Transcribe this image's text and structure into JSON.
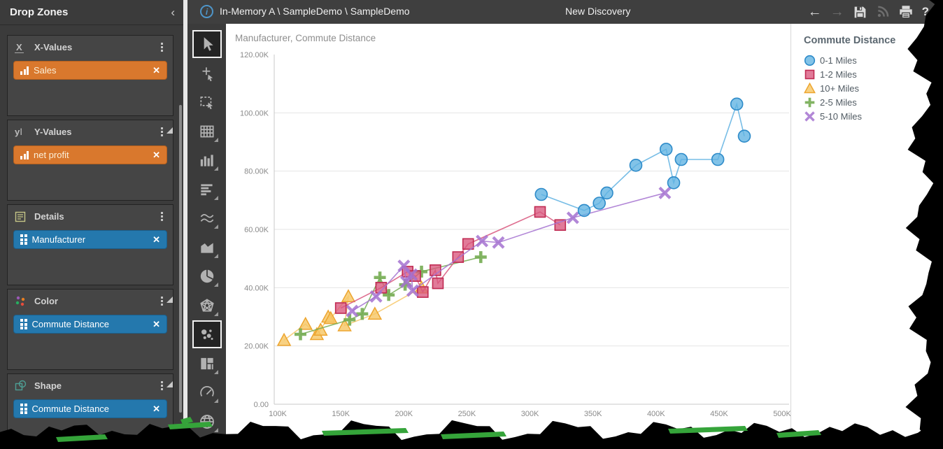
{
  "left_panel": {
    "title": "Drop Zones",
    "collapse_icon": "‹",
    "zones": [
      {
        "label": "X-Values",
        "icon": "x-axis-icon",
        "pill": {
          "text": "Sales",
          "type": "measure"
        }
      },
      {
        "label": "Y-Values",
        "icon": "y-axis-icon",
        "pill": {
          "text": "net profit",
          "type": "measure"
        }
      },
      {
        "label": "Details",
        "icon": "document-icon",
        "pill": {
          "text": "Manufacturer",
          "type": "dimension"
        }
      },
      {
        "label": "Color",
        "icon": "color-dots-icon",
        "pill": {
          "text": "Commute Distance",
          "type": "dimension"
        }
      },
      {
        "label": "Shape",
        "icon": "shape-icon",
        "pill": {
          "text": "Commute Distance",
          "type": "dimension"
        }
      }
    ]
  },
  "top_bar": {
    "breadcrumb": "In-Memory A \\ SampleDemo \\ SampleDemo",
    "title": "New Discovery",
    "back_arrow": "←",
    "forward_arrow": "→",
    "help_glyph": "?"
  },
  "toolbar_tools": [
    "pointer-tool",
    "crosshair-select-tool",
    "marquee-select-tool",
    "grid-tool",
    "column-chart-tool",
    "bar-chart-tool",
    "line-chart-tool",
    "area-chart-tool",
    "pie-chart-tool",
    "radar-chart-tool",
    "scatter-chart-tool",
    "treemap-tool",
    "gauge-tool",
    "map-tool"
  ],
  "colors": {
    "measure_pill": "#D9782D",
    "dimension_pill": "#2478AD"
  },
  "chart_data": {
    "type": "scatter",
    "title": "Manufacturer, Commute Distance",
    "legend_title": "Commute Distance",
    "x_field": "Sales",
    "y_field": "net profit",
    "x_axis": {
      "ticks": [
        100,
        150,
        200,
        250,
        300,
        350,
        400,
        450,
        500
      ],
      "tick_labels": [
        "100K",
        "150K",
        "200K",
        "250K",
        "300K",
        "350K",
        "400K",
        "450K",
        "500K"
      ],
      "units": "thousands"
    },
    "y_axis": {
      "ticks": [
        0,
        20,
        40,
        60,
        80,
        100,
        120
      ],
      "tick_labels": [
        "0.00",
        "20.00K",
        "40.00K",
        "60.00K",
        "80.00K",
        "100.00K",
        "120.00K"
      ],
      "units": "thousands"
    },
    "grid": "horizontal",
    "legend_position": "right",
    "series": [
      {
        "name": "0-1 Miles",
        "shape": "circle",
        "color": "#5FB2E2",
        "stroke": "#2E8BC9",
        "points": [
          [
            309,
            72
          ],
          [
            343,
            66.5
          ],
          [
            355,
            69
          ],
          [
            361,
            72.5
          ],
          [
            384,
            82
          ],
          [
            408,
            87.5
          ],
          [
            414,
            76
          ],
          [
            420,
            84
          ],
          [
            449,
            84
          ],
          [
            464,
            103
          ],
          [
            470,
            92
          ]
        ]
      },
      {
        "name": "1-2 Miles",
        "shape": "square",
        "color": "#D8567C",
        "stroke": "#C02A52",
        "points": [
          [
            150,
            33
          ],
          [
            182,
            40
          ],
          [
            203,
            45.5
          ],
          [
            209,
            44
          ],
          [
            215,
            38.5
          ],
          [
            225,
            46
          ],
          [
            227,
            41.5
          ],
          [
            243,
            50.5
          ],
          [
            251,
            55
          ],
          [
            308,
            66
          ],
          [
            324,
            61.5
          ]
        ]
      },
      {
        "name": "10+ Miles",
        "shape": "triangle",
        "color": "#F7C766",
        "stroke": "#EDA52F",
        "points": [
          [
            105,
            22
          ],
          [
            122,
            27.5
          ],
          [
            131,
            24
          ],
          [
            134,
            25.5
          ],
          [
            140,
            30
          ],
          [
            142,
            29.5
          ],
          [
            156,
            37
          ],
          [
            153,
            27
          ],
          [
            177,
            31
          ],
          [
            214,
            40
          ]
        ]
      },
      {
        "name": "2-5 Miles",
        "shape": "plus",
        "color": "#74AC52",
        "stroke": "#62A03F",
        "points": [
          [
            118,
            24
          ],
          [
            157,
            29
          ],
          [
            167,
            31
          ],
          [
            181,
            43.5
          ],
          [
            188,
            37.5
          ],
          [
            201,
            41
          ],
          [
            214,
            45.5
          ],
          [
            261,
            50.5
          ]
        ]
      },
      {
        "name": "5-10 Miles",
        "shape": "x",
        "color": "#A472D0",
        "stroke": "#9258C4",
        "points": [
          [
            159,
            32
          ],
          [
            178,
            37
          ],
          [
            200,
            47.5
          ],
          [
            202,
            42
          ],
          [
            206,
            44.5
          ],
          [
            207,
            39
          ],
          [
            262,
            56
          ],
          [
            275,
            55.5
          ],
          [
            334,
            64
          ],
          [
            407,
            72.5
          ]
        ]
      }
    ]
  }
}
